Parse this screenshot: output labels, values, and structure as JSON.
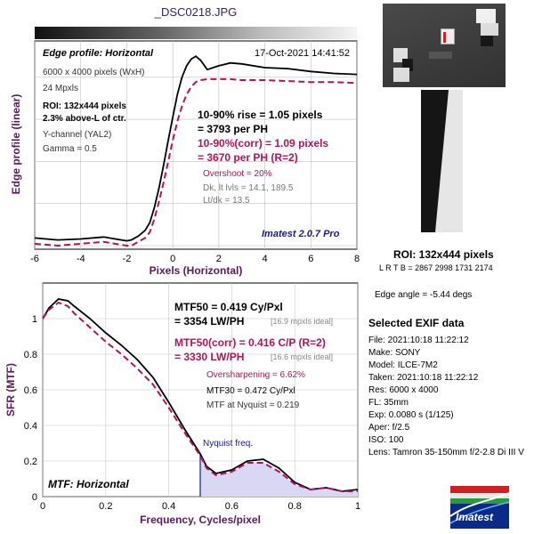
{
  "file_title": "_DSC0218.JPG",
  "colors": {
    "title": "#3a1a6a",
    "axis_label": "#5a1a5a",
    "magenta": "#b0145a",
    "blue": "#1a1a8c",
    "gray": "#555555",
    "fill": "#d8d8f4"
  },
  "edge_panel": {
    "header": "Edge profile: Horizontal",
    "datetime": "17-Oct-2021 14:41:52",
    "info": [
      "6000 x 4000 pixels (WxH)",
      "24 Mpxls"
    ],
    "roi_lines": [
      "ROI: 132x444 pixels",
      "2.3% above-L of ctr."
    ],
    "channel_lines": [
      "Y-channel  (YAL2)",
      "Gamma = 0.5"
    ],
    "rise_lines": [
      "10-90% rise = 1.05 pixels",
      "= 3793 per PH"
    ],
    "corr_lines": [
      "10-90%(corr) = 1.09 pixels",
      "= 3670 per PH  (R=2)"
    ],
    "overshoot": "Overshoot = 20%",
    "levels_lines": [
      "Dk, lt lvls = 14.1, 189.5",
      "Lt/dk = 13.5"
    ],
    "version": "Imatest 2.0.7 Pro"
  },
  "mtf_panel": {
    "mtf50_lines": [
      "MTF50 = 0.419 Cy/Pxl",
      "= 3354 LW/PH"
    ],
    "ideal1": "[16.9 mpxls ideal]",
    "corr_lines": [
      "MTF50(corr) = 0.416 C/P  (R=2)",
      "= 3330 LW/PH"
    ],
    "ideal2": "[16.6 mpxls ideal]",
    "oversharpening": "Oversharpening = 6.62%",
    "mtf30": "MTF30 = 0.472 Cy/Pxl",
    "nyq_mtf": "MTF at Nyquist = 0.219",
    "nyquist_label": "Nyquist freq.",
    "title": "MTF: Horizontal"
  },
  "right_panel": {
    "roi_title": "ROI: 132x444 pixels",
    "roi_coords": "L R  T B = 2867 2998  1731 2174",
    "edge_angle": "Edge angle = -5.44 degs",
    "exif_title": "Selected EXIF data",
    "exif": [
      "File:  2021:10:18 11:22:12",
      "Make:  SONY",
      "Model:  ILCE-7M2",
      "Taken:  2021:10:18 11:22:12",
      "Res:   6000 x 4000",
      "FL:  35mm",
      "Exp:   0.0080 s  (1/125)",
      "Aper:   f/2.5",
      "ISO:   100",
      "Lens:  Tamron 35-150mm f/2-2.8 Di III V"
    ],
    "logo": "Imatest"
  },
  "chart_data": [
    {
      "type": "line",
      "title": "Edge profile: Horizontal",
      "xlabel": "Pixels (Horizontal)",
      "ylabel": "Edge profile (linear)",
      "xlim": [
        -6,
        8
      ],
      "xticks": [
        -6,
        -4,
        -2,
        0,
        2,
        4,
        6,
        8
      ],
      "series": [
        {
          "x": [
            -6,
            -5,
            -4,
            -3,
            -2.5,
            -2,
            -1.8,
            -1.5,
            -1.2,
            -1,
            -0.8,
            -0.6,
            -0.4,
            -0.2,
            0,
            0.2,
            0.4,
            0.6,
            0.8,
            1,
            1.2,
            1.5,
            2,
            2.5,
            3,
            4,
            5,
            6,
            7,
            8
          ],
          "y": [
            0.04,
            0.03,
            0.035,
            0.045,
            0.035,
            0.025,
            0.03,
            0.05,
            0.08,
            0.12,
            0.2,
            0.3,
            0.42,
            0.55,
            0.67,
            0.79,
            0.88,
            0.94,
            0.975,
            0.99,
            0.97,
            0.92,
            0.94,
            0.955,
            0.95,
            0.93,
            0.925,
            0.91,
            0.9,
            0.895
          ]
        },
        {
          "x": [
            -6,
            -5,
            -4,
            -3,
            -2.5,
            -2,
            -1.8,
            -1.5,
            -1.2,
            -1,
            -0.8,
            -0.6,
            -0.4,
            -0.2,
            0,
            0.2,
            0.4,
            0.6,
            0.8,
            1,
            1.2,
            1.5,
            2,
            2.5,
            3,
            4,
            5,
            6,
            7,
            8
          ],
          "y": [
            0.01,
            0.0,
            0.01,
            0.02,
            0.01,
            0.0,
            0.0,
            0.02,
            0.04,
            0.07,
            0.14,
            0.23,
            0.33,
            0.44,
            0.55,
            0.65,
            0.73,
            0.79,
            0.83,
            0.855,
            0.865,
            0.87,
            0.87,
            0.87,
            0.865,
            0.865,
            0.86,
            0.855,
            0.855,
            0.85
          ]
        }
      ]
    },
    {
      "type": "area",
      "title": "MTF: Horizontal",
      "xlabel": "Frequency, Cycles/pixel",
      "ylabel": "SFR (MTF)",
      "xlim": [
        0,
        1
      ],
      "ylim": [
        0,
        1.2
      ],
      "xticks": [
        0,
        0.2,
        0.4,
        0.6,
        0.8,
        1
      ],
      "yticks": [
        0,
        0.2,
        0.4,
        0.6,
        0.8,
        1
      ],
      "nyquist": 0.5,
      "series": [
        {
          "x": [
            0,
            0.02,
            0.05,
            0.08,
            0.1,
            0.15,
            0.2,
            0.25,
            0.3,
            0.35,
            0.4,
            0.45,
            0.5,
            0.52,
            0.55,
            0.6,
            0.65,
            0.7,
            0.75,
            0.8,
            0.85,
            0.9,
            0.95,
            1
          ],
          "y": [
            1.0,
            1.06,
            1.11,
            1.1,
            1.07,
            1.0,
            0.92,
            0.85,
            0.77,
            0.67,
            0.53,
            0.38,
            0.24,
            0.17,
            0.13,
            0.15,
            0.2,
            0.21,
            0.16,
            0.08,
            0.04,
            0.05,
            0.03,
            0.04
          ]
        },
        {
          "x": [
            0,
            0.02,
            0.05,
            0.08,
            0.1,
            0.15,
            0.2,
            0.25,
            0.3,
            0.35,
            0.4,
            0.45,
            0.5,
            0.52,
            0.55,
            0.6,
            0.65,
            0.7,
            0.75,
            0.8,
            0.85,
            0.9,
            0.95,
            1
          ],
          "y": [
            1.0,
            1.05,
            1.09,
            1.07,
            1.03,
            0.95,
            0.87,
            0.8,
            0.72,
            0.63,
            0.5,
            0.36,
            0.23,
            0.16,
            0.12,
            0.14,
            0.19,
            0.19,
            0.14,
            0.07,
            0.04,
            0.05,
            0.03,
            0.03
          ]
        }
      ]
    }
  ]
}
